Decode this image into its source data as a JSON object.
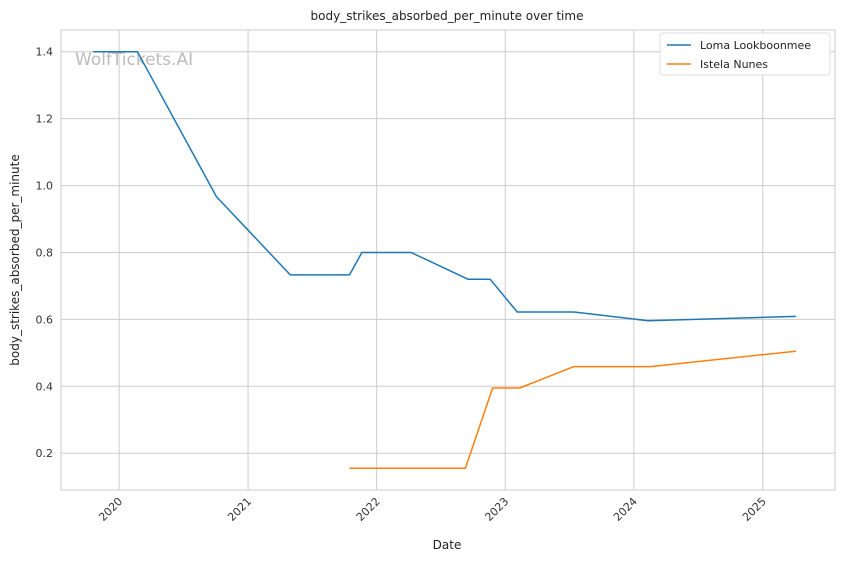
{
  "chart_data": {
    "type": "line",
    "title": "body_strikes_absorbed_per_minute over time",
    "xlabel": "Date",
    "ylabel": "body_strikes_absorbed_per_minute",
    "x_tick_labels": [
      "2020",
      "2021",
      "2022",
      "2023",
      "2024",
      "2025"
    ],
    "y_tick_labels": [
      "0.2",
      "0.4",
      "0.6",
      "0.8",
      "1.0",
      "1.2",
      "1.4"
    ],
    "xlim": [
      "2019-07-20",
      "2025-07-25"
    ],
    "ylim": [
      0.09,
      1.465
    ],
    "grid": true,
    "legend_position": "top-right",
    "watermark": "WolfTickets.AI",
    "series": [
      {
        "name": "Loma Lookboonmee",
        "color": "#1f77b4",
        "points": [
          {
            "x": "2019-10-19",
            "y": 1.4
          },
          {
            "x": "2020-02-22",
            "y": 1.4
          },
          {
            "x": "2020-10-03",
            "y": 0.967
          },
          {
            "x": "2021-05-01",
            "y": 0.733
          },
          {
            "x": "2021-10-16",
            "y": 0.733
          },
          {
            "x": "2021-11-20",
            "y": 0.8
          },
          {
            "x": "2022-04-09",
            "y": 0.8
          },
          {
            "x": "2022-09-17",
            "y": 0.72
          },
          {
            "x": "2022-11-19",
            "y": 0.72
          },
          {
            "x": "2023-02-04",
            "y": 0.622
          },
          {
            "x": "2023-07-15",
            "y": 0.622
          },
          {
            "x": "2024-02-10",
            "y": 0.596
          },
          {
            "x": "2025-04-05",
            "y": 0.609
          }
        ]
      },
      {
        "name": "Istela Nunes",
        "color": "#ff7f0e",
        "points": [
          {
            "x": "2021-10-16",
            "y": 0.155
          },
          {
            "x": "2022-09-10",
            "y": 0.155
          },
          {
            "x": "2022-11-26",
            "y": 0.395
          },
          {
            "x": "2023-02-11",
            "y": 0.395
          },
          {
            "x": "2023-07-15",
            "y": 0.459
          },
          {
            "x": "2024-02-17",
            "y": 0.459
          },
          {
            "x": "2025-04-05",
            "y": 0.505
          }
        ]
      }
    ]
  }
}
